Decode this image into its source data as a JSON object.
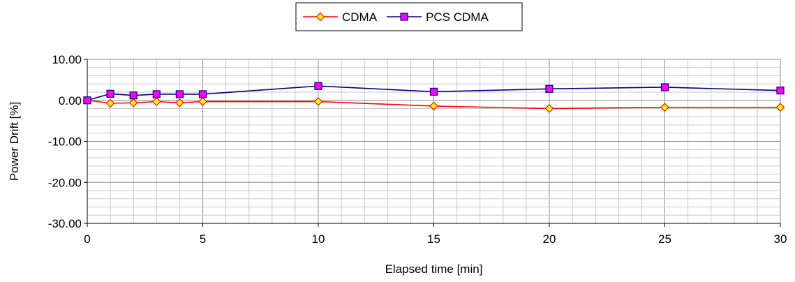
{
  "chart_data": {
    "type": "line",
    "xlabel": "Elapsed time [min]",
    "ylabel": "Power Drift [%]",
    "xlim": [
      0,
      30
    ],
    "ylim": [
      -30,
      10
    ],
    "x_ticks": [
      0,
      5,
      10,
      15,
      20,
      25,
      30
    ],
    "x_tick_labels": [
      "0",
      "5",
      "10",
      "15",
      "20",
      "25",
      "30"
    ],
    "y_ticks": [
      10,
      0,
      -10,
      -20,
      -30
    ],
    "y_tick_labels": [
      "10.00",
      "0.00",
      "-10.00",
      "-20.00",
      "-30.00"
    ],
    "x_minor_step": 1,
    "y_minor_step": 2,
    "grid": true,
    "legend_position": "top-center",
    "series": [
      {
        "name": "CDMA",
        "color": "#ff0000",
        "marker": "diamond",
        "marker_fill": "#ffff00",
        "x": [
          0,
          1,
          2,
          3,
          4,
          5,
          10,
          15,
          20,
          25,
          30
        ],
        "y": [
          0.0,
          -0.7,
          -0.6,
          -0.3,
          -0.6,
          -0.3,
          -0.3,
          -1.4,
          -2.0,
          -1.7,
          -1.7
        ]
      },
      {
        "name": "PCS CDMA",
        "color": "#000080",
        "marker": "square",
        "marker_fill": "#ff00ff",
        "x": [
          0,
          1,
          2,
          3,
          4,
          5,
          10,
          15,
          20,
          25,
          30
        ],
        "y": [
          0.0,
          1.6,
          1.2,
          1.5,
          1.5,
          1.5,
          3.5,
          2.1,
          2.8,
          3.2,
          2.4
        ]
      }
    ]
  }
}
